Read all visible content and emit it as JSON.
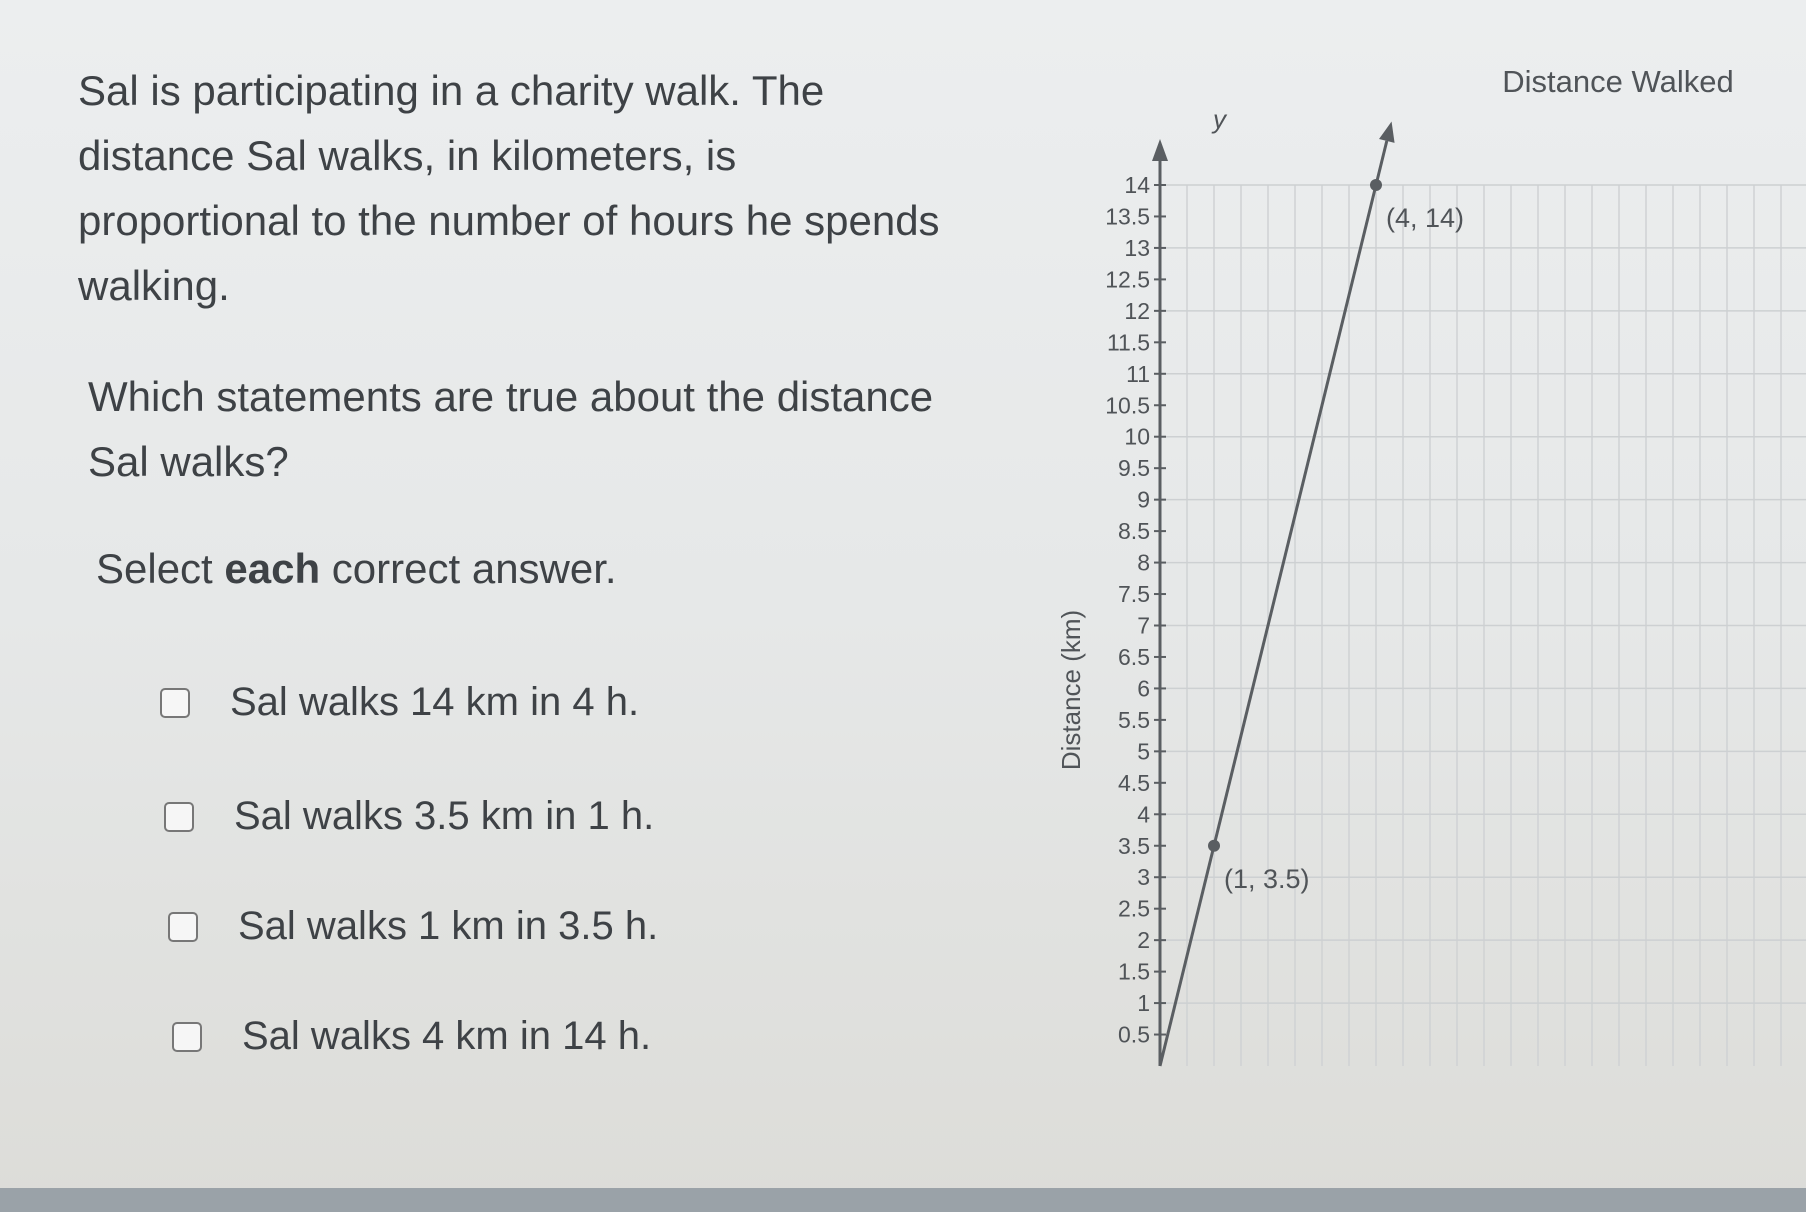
{
  "question": {
    "stem": "Sal is participating in a charity walk. The distance Sal walks, in kilometers, is proportional to the number of hours he spends walking.",
    "ask": "Which statements are true about the distance Sal walks?",
    "instruction_pre": "Select ",
    "instruction_bold": "each",
    "instruction_post": " correct answer.",
    "options": [
      {
        "label": "Sal walks 14 km in 4 h.",
        "checked": false
      },
      {
        "label": "Sal walks 3.5 km in 1 h.",
        "checked": false
      },
      {
        "label": "Sal walks 1 km in 3.5 h.",
        "checked": false
      },
      {
        "label": "Sal walks 4 km in 14 h.",
        "checked": false
      }
    ]
  },
  "chart_data": {
    "type": "line",
    "title": "Distance Walked",
    "ylabel": "Distance (km)",
    "yaxis_letter": "y",
    "ylim": [
      0,
      14
    ],
    "xlim": [
      0,
      6
    ],
    "y_ticks": [
      "0.5",
      "1",
      "1.5",
      "2",
      "2.5",
      "3",
      "3.5",
      "4",
      "4.5",
      "5",
      "5.5",
      "6",
      "6.5",
      "7",
      "7.5",
      "8",
      "8.5",
      "9",
      "9.5",
      "10",
      "10.5",
      "11",
      "11.5",
      "12",
      "12.5",
      "13",
      "13.5",
      "14"
    ],
    "grid": true,
    "line": {
      "slope": 3.5,
      "through": [
        [
          0,
          0
        ],
        [
          4,
          14
        ]
      ]
    },
    "points": [
      {
        "x": 1,
        "y": 3.5,
        "label": "(1, 3.5)"
      },
      {
        "x": 4,
        "y": 14,
        "label": "(4, 14)"
      }
    ],
    "color": "#5a5e62"
  }
}
